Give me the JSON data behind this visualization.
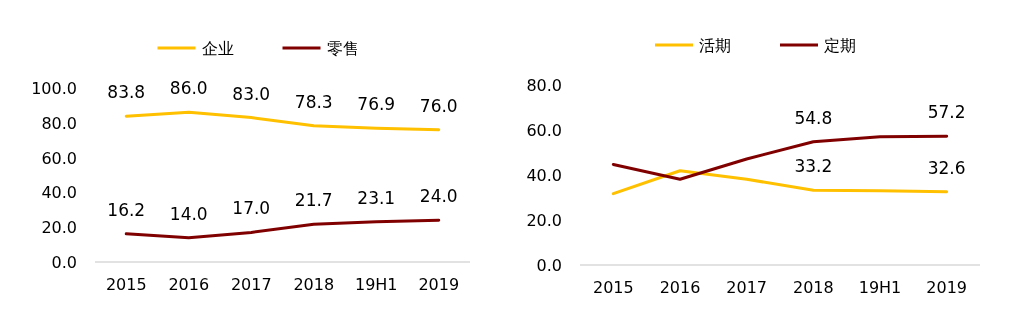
{
  "chart_data": [
    {
      "type": "line",
      "categories": [
        "2015",
        "2016",
        "2017",
        "2018",
        "19H1",
        "2019"
      ],
      "legend": "top",
      "ylim": [
        0,
        100
      ],
      "yticks": [
        {
          "value": 0,
          "label": "0.0"
        },
        {
          "value": 20,
          "label": "20.0"
        },
        {
          "value": 40,
          "label": "40.0"
        },
        {
          "value": 60,
          "label": "60.0"
        },
        {
          "value": 80,
          "label": "80.0"
        },
        {
          "value": 100,
          "label": "100.0"
        }
      ],
      "series": [
        {
          "name": "企业",
          "color": "#ffc000",
          "values": [
            83.8,
            86.0,
            83.0,
            78.3,
            76.9,
            76.0
          ],
          "value_labels": [
            "83.8",
            "86.0",
            "83.0",
            "78.3",
            "76.9",
            "76.0"
          ]
        },
        {
          "name": "零售",
          "color": "#800000",
          "values": [
            16.2,
            14.0,
            17.0,
            21.7,
            23.1,
            24.0
          ],
          "value_labels": [
            "16.2",
            "14.0",
            "17.0",
            "21.7",
            "23.1",
            "24.0"
          ]
        }
      ]
    },
    {
      "type": "line",
      "categories": [
        "2015",
        "2016",
        "2017",
        "2018",
        "19H1",
        "2019"
      ],
      "legend": "top",
      "ylim": [
        0,
        80
      ],
      "yticks": [
        {
          "value": 0,
          "label": "0.0"
        },
        {
          "value": 20,
          "label": "20.0"
        },
        {
          "value": 40,
          "label": "40.0"
        },
        {
          "value": 60,
          "label": "60.0"
        },
        {
          "value": 80,
          "label": "80.0"
        }
      ],
      "series": [
        {
          "name": "活期",
          "color": "#ffc000",
          "values": [
            31.7,
            41.9,
            38.1,
            33.2,
            33.0,
            32.6
          ],
          "value_labels": [
            null,
            null,
            null,
            "33.2",
            null,
            "32.6"
          ]
        },
        {
          "name": "定期",
          "color": "#800000",
          "values": [
            44.7,
            38.1,
            47.1,
            54.8,
            57.0,
            57.2
          ],
          "value_labels": [
            null,
            null,
            null,
            "54.8",
            null,
            "57.2"
          ]
        }
      ]
    }
  ]
}
